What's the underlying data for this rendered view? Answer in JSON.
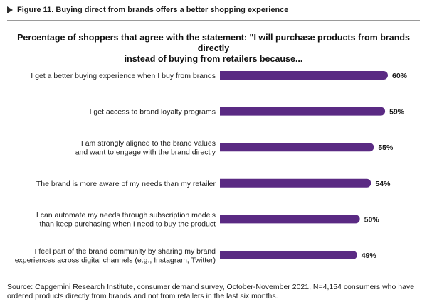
{
  "figure": {
    "title": "Figure 11. Buying direct from brands offers a better shopping experience"
  },
  "chart_data": {
    "type": "bar",
    "orientation": "horizontal",
    "title_lines": [
      "Percentage of shoppers that agree with the statement: \"I will purchase products from brands directly",
      "instead of buying from retailers because..."
    ],
    "categories": [
      [
        "I get a better buying experience when I buy from brands"
      ],
      [
        "I get access to brand loyalty programs"
      ],
      [
        "I am strongly aligned to the brand values",
        "and want to engage with the brand directly"
      ],
      [
        "The brand is more aware of my needs than my retailer"
      ],
      [
        "I can automate my needs through subscription models",
        "than keep purchasing when I need to buy the product"
      ],
      [
        "I feel part of the brand community by sharing my brand",
        "experiences across digital channels (e.g., Instagram, Twitter)"
      ]
    ],
    "values": [
      60,
      59,
      55,
      54,
      50,
      49
    ],
    "value_labels": [
      "60%",
      "59%",
      "55%",
      "54%",
      "50%",
      "49%"
    ],
    "bar_color": "#5a2a83",
    "xlim": [
      0,
      60
    ],
    "grid": false,
    "legend": "none"
  },
  "source": {
    "line1": "Source: Capgemini Research Institute, consumer demand survey, October-November 2021, N=4,154 consumers who have",
    "line2": "ordered products directly from brands and not from retailers in the last six months."
  }
}
